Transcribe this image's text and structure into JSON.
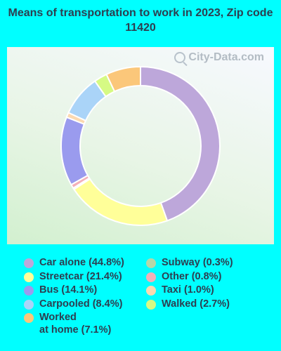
{
  "title": "Means of transportation to work in 2023, Zip code 11420",
  "watermark": "City-Data.com",
  "chart_data": {
    "type": "pie",
    "donut": true,
    "start": "top, clockwise",
    "slices": [
      {
        "label": "Car alone",
        "value": 44.8,
        "legend": "Car alone (44.8%)",
        "color": "#BDA7DA"
      },
      {
        "label": "Streetcar",
        "value": 21.4,
        "legend": "Streetcar (21.4%)",
        "color": "#FFFF99"
      },
      {
        "label": "Subway",
        "value": 0.3,
        "legend": "Subway (0.3%)",
        "color": "#B6D7A8"
      },
      {
        "label": "Other",
        "value": 0.8,
        "legend": "Other (0.8%)",
        "color": "#F4B0B8"
      },
      {
        "label": "Bus",
        "value": 14.1,
        "legend": "Bus (14.1%)",
        "color": "#9A9BEE"
      },
      {
        "label": "Taxi",
        "value": 1.0,
        "legend": "Taxi (1.0%)",
        "color": "#FBD9B0"
      },
      {
        "label": "Carpooled",
        "value": 8.4,
        "legend": "Carpooled (8.4%)",
        "color": "#AAD4F8"
      },
      {
        "label": "Walked",
        "value": 2.7,
        "legend": "Walked (2.7%)",
        "color": "#D6FA84"
      },
      {
        "label": "Worked at home",
        "value": 7.1,
        "legend": "Worked\nat home (7.1%)",
        "color": "#FBC77A"
      }
    ],
    "legend_left": [
      "Car alone",
      "Streetcar",
      "Bus",
      "Carpooled",
      "Worked at home"
    ],
    "legend_right": [
      "Subway",
      "Other",
      "Taxi",
      "Walked"
    ],
    "legend_placement": "bottom"
  }
}
